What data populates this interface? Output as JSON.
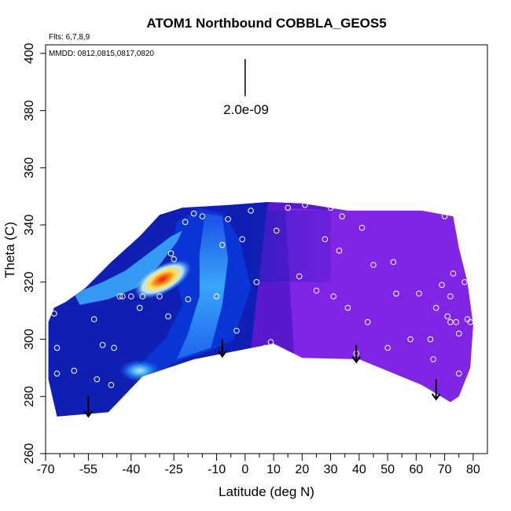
{
  "chart_data": {
    "type": "heatmap",
    "title": "ATOM1 Northbound COBBLA_GEOS5",
    "annotations": {
      "flights": "Flts: 6,7,8,9",
      "dates": "MMDD: 0812,0815,0817,0820",
      "scale_label": "2.0e-09"
    },
    "xlabel": "Latitude (deg N)",
    "ylabel": "Theta (C)",
    "xlim": [
      -70,
      85
    ],
    "ylim": [
      260,
      403
    ],
    "xticks": [
      -70,
      -55,
      -40,
      -25,
      -10,
      0,
      10,
      20,
      30,
      40,
      50,
      60,
      70,
      80
    ],
    "xticklabels": [
      "-70",
      "-55",
      "-40",
      "-25",
      "-10",
      "0",
      "10",
      "20",
      "30",
      "40",
      "50",
      "60",
      "70",
      "80"
    ],
    "xminor_step": 5,
    "yticks": [
      260,
      280,
      300,
      320,
      340,
      360,
      380,
      400
    ],
    "yticklabels": [
      "260",
      "280",
      "300",
      "320",
      "340",
      "360",
      "380",
      "400"
    ],
    "grid": false,
    "colormap": [
      "#8024e6",
      "#5a1acc",
      "#0f1fb4",
      "#0a35d6",
      "#1f63ee",
      "#39a6fa",
      "#bfe6ff",
      "#ffe14d",
      "#ff7a1a",
      "#e01e1e"
    ],
    "domain_outline": [
      [
        -66,
        273
      ],
      [
        -48,
        274.5
      ],
      [
        -36,
        287
      ],
      [
        -18,
        293
      ],
      [
        10,
        298.5
      ],
      [
        20,
        293.5
      ],
      [
        40,
        293
      ],
      [
        62,
        284
      ],
      [
        72,
        278
      ],
      [
        75,
        280
      ],
      [
        79,
        290
      ],
      [
        80,
        305
      ],
      [
        78,
        320
      ],
      [
        75,
        332
      ],
      [
        73,
        343
      ],
      [
        62,
        345
      ],
      [
        45,
        345
      ],
      [
        36,
        345
      ],
      [
        20,
        347.5
      ],
      [
        8,
        348
      ],
      [
        -5,
        347
      ],
      [
        -22,
        346
      ],
      [
        -30,
        343.5
      ],
      [
        -37,
        336
      ],
      [
        -47,
        327
      ],
      [
        -56,
        318
      ],
      [
        -63,
        313
      ],
      [
        -67,
        311
      ],
      [
        -69,
        306
      ],
      [
        -69,
        286
      ]
    ],
    "contour_fronts": [
      {
        "bottom": [
          2,
          296
        ],
        "top": [
          8,
          348
        ]
      },
      {
        "bottom": [
          11,
          298
        ],
        "top": [
          14,
          346
        ],
        "darker_top": [
          30,
          345
        ]
      }
    ],
    "jet_maximum": [
      -29,
      321
    ],
    "low_level_maximum": [
      -37,
      289
    ],
    "sample_points": [
      [
        -66,
        288
      ],
      [
        -66,
        297
      ],
      [
        -60,
        289
      ],
      [
        -67,
        309
      ],
      [
        -53,
        307
      ],
      [
        -50,
        298
      ],
      [
        -52,
        286
      ],
      [
        -47,
        284
      ],
      [
        -46,
        297
      ],
      [
        -43,
        315
      ],
      [
        -40,
        315
      ],
      [
        -37,
        311
      ],
      [
        -36,
        315
      ],
      [
        -44,
        315
      ],
      [
        -30,
        315
      ],
      [
        -27,
        308
      ],
      [
        -25,
        328
      ],
      [
        -26,
        330
      ],
      [
        -21,
        341
      ],
      [
        -18,
        344
      ],
      [
        -20,
        314
      ],
      [
        -15,
        343
      ],
      [
        -10,
        315
      ],
      [
        -8,
        333
      ],
      [
        -6,
        342
      ],
      [
        -3,
        303
      ],
      [
        -1,
        335
      ],
      [
        2,
        345
      ],
      [
        4,
        320
      ],
      [
        7,
        297
      ],
      [
        9,
        299
      ],
      [
        11,
        338
      ],
      [
        15,
        346
      ],
      [
        19,
        322
      ],
      [
        21,
        347
      ],
      [
        25,
        317
      ],
      [
        28,
        335
      ],
      [
        30,
        346
      ],
      [
        31,
        315
      ],
      [
        33,
        331
      ],
      [
        34,
        343
      ],
      [
        36,
        311
      ],
      [
        39,
        295
      ],
      [
        41,
        339
      ],
      [
        43,
        306
      ],
      [
        45,
        326
      ],
      [
        50,
        297
      ],
      [
        52,
        327
      ],
      [
        53,
        316
      ],
      [
        58,
        300
      ],
      [
        61,
        316
      ],
      [
        65,
        300
      ],
      [
        66,
        293
      ],
      [
        67,
        311
      ],
      [
        69,
        319
      ],
      [
        70,
        343
      ],
      [
        71,
        308
      ],
      [
        72,
        306
      ],
      [
        72,
        315
      ],
      [
        73,
        323
      ],
      [
        74,
        306
      ],
      [
        75,
        302
      ],
      [
        75,
        288
      ],
      [
        77,
        320
      ],
      [
        78,
        307
      ],
      [
        79,
        306
      ],
      [
        74,
        278
      ]
    ],
    "descent_arrows": [
      {
        "lat": -55,
        "from": 280,
        "to": 273
      },
      {
        "lat": -8,
        "from": 300,
        "to": 294
      },
      {
        "lat": 39,
        "from": 298,
        "to": 292
      },
      {
        "lat": 67,
        "from": 286,
        "to": 279
      }
    ],
    "scale_bar": {
      "lat": 0,
      "from": 398,
      "to": 385
    }
  }
}
